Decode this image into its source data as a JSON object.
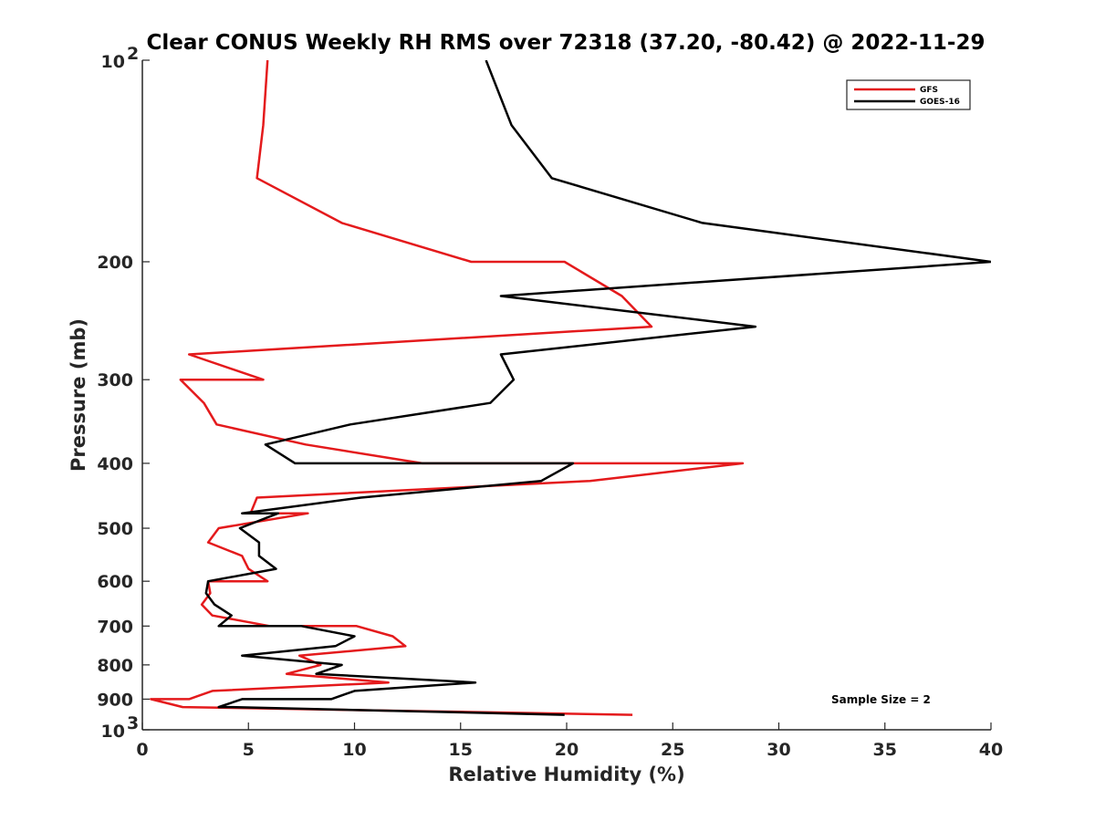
{
  "chart_data": {
    "type": "line",
    "title": "Clear CONUS Weekly RH RMS over 72318 (37.20, -80.42) @ 2022-11-29",
    "xlabel": "Relative Humidity (%)",
    "ylabel": "Pressure (mb)",
    "xlim": [
      0,
      40
    ],
    "ylim": [
      100,
      1000
    ],
    "y_scale": "log",
    "y_reversed": true,
    "grid": false,
    "legend_position": "top-right",
    "x_ticks": [
      "0",
      "5",
      "10",
      "15",
      "20",
      "25",
      "30",
      "35",
      "40"
    ],
    "y_ticks": [
      {
        "value": 100,
        "base": "10",
        "exp": "2"
      },
      {
        "value": 200,
        "label": "200"
      },
      {
        "value": 300,
        "label": "300"
      },
      {
        "value": 400,
        "label": "400"
      },
      {
        "value": 500,
        "label": "500"
      },
      {
        "value": 600,
        "label": "600"
      },
      {
        "value": 700,
        "label": "700"
      },
      {
        "value": 800,
        "label": "800"
      },
      {
        "value": 900,
        "label": "900"
      },
      {
        "value": 1000,
        "base": "10",
        "exp": "3"
      }
    ],
    "annotation": "Sample Size = 2",
    "series": [
      {
        "name": "GFS",
        "color": "#e41a1c",
        "points": [
          [
            5.9,
            100
          ],
          [
            5.7,
            125
          ],
          [
            5.4,
            150
          ],
          [
            9.4,
            175
          ],
          [
            15.5,
            200
          ],
          [
            19.9,
            200
          ],
          [
            22.6,
            225
          ],
          [
            24.0,
            250
          ],
          [
            2.2,
            275
          ],
          [
            5.7,
            300
          ],
          [
            1.8,
            300
          ],
          [
            2.9,
            325
          ],
          [
            3.5,
            350
          ],
          [
            7.7,
            375
          ],
          [
            13.2,
            400
          ],
          [
            28.3,
            400
          ],
          [
            21.1,
            425
          ],
          [
            5.4,
            450
          ],
          [
            5.1,
            475
          ],
          [
            7.8,
            475
          ],
          [
            3.6,
            500
          ],
          [
            3.1,
            525
          ],
          [
            4.7,
            550
          ],
          [
            5.0,
            575
          ],
          [
            5.9,
            600
          ],
          [
            3.1,
            600
          ],
          [
            3.2,
            625
          ],
          [
            2.8,
            650
          ],
          [
            3.3,
            675
          ],
          [
            6.0,
            700
          ],
          [
            10.1,
            700
          ],
          [
            11.8,
            725
          ],
          [
            12.4,
            750
          ],
          [
            7.4,
            775
          ],
          [
            8.4,
            800
          ],
          [
            6.8,
            825
          ],
          [
            11.6,
            850
          ],
          [
            3.3,
            875
          ],
          [
            2.2,
            900
          ],
          [
            0.4,
            900
          ],
          [
            1.9,
            925
          ],
          [
            23.1,
            950
          ]
        ]
      },
      {
        "name": "GOES-16",
        "color": "#000000",
        "points": [
          [
            16.2,
            100
          ],
          [
            17.4,
            125
          ],
          [
            19.3,
            150
          ],
          [
            26.4,
            175
          ],
          [
            40.0,
            200
          ],
          [
            40.0,
            200
          ],
          [
            16.9,
            225
          ],
          [
            28.9,
            250
          ],
          [
            16.9,
            275
          ],
          [
            17.5,
            300
          ],
          [
            16.4,
            325
          ],
          [
            9.8,
            350
          ],
          [
            5.8,
            375
          ],
          [
            7.2,
            400
          ],
          [
            20.3,
            400
          ],
          [
            18.8,
            425
          ],
          [
            10.3,
            450
          ],
          [
            4.7,
            475
          ],
          [
            6.4,
            475
          ],
          [
            4.6,
            500
          ],
          [
            5.5,
            525
          ],
          [
            5.5,
            550
          ],
          [
            6.3,
            575
          ],
          [
            3.1,
            600
          ],
          [
            3.0,
            625
          ],
          [
            3.4,
            650
          ],
          [
            4.2,
            675
          ],
          [
            3.6,
            700
          ],
          [
            7.5,
            700
          ],
          [
            10.0,
            725
          ],
          [
            9.1,
            750
          ],
          [
            4.7,
            775
          ],
          [
            9.4,
            800
          ],
          [
            8.2,
            825
          ],
          [
            15.7,
            850
          ],
          [
            10.0,
            875
          ],
          [
            8.9,
            900
          ],
          [
            4.7,
            900
          ],
          [
            3.6,
            925
          ],
          [
            4.1,
            925
          ],
          [
            19.9,
            950
          ]
        ]
      }
    ]
  }
}
